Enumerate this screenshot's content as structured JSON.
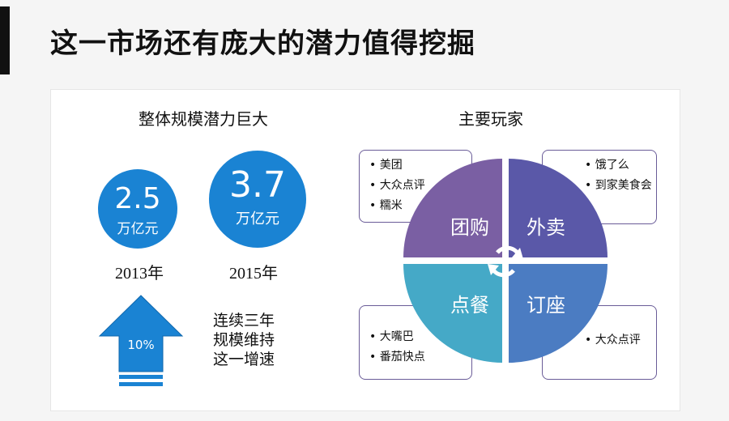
{
  "header": {
    "title": "这一市场还有庞大的潜力值得挖掘"
  },
  "left": {
    "section_title": "整体规模潜力巨大",
    "stats": [
      {
        "value": "2.5",
        "unit": "万亿元",
        "year": "2013年"
      },
      {
        "value": "3.7",
        "unit": "万亿元",
        "year": "2015年"
      }
    ],
    "growth": {
      "rate": "10%",
      "text": [
        "连续三年",
        "规模维持",
        "这一增速"
      ]
    }
  },
  "right": {
    "section_title": "主要玩家",
    "quadrants": [
      "团购",
      "外卖",
      "点餐",
      "订座"
    ],
    "players": {
      "tuangou": [
        "美团",
        "大众点评",
        "糯米"
      ],
      "waimai": [
        "饿了么",
        "到家美食会"
      ],
      "diancan": [
        "大嘴巴",
        "番茄快点"
      ],
      "dingzuo": [
        "大众点评"
      ]
    }
  },
  "colors": {
    "stat_blue": "#1a83d3",
    "tuangou": "#7a5fa3",
    "waimai": "#5a58a8",
    "diancan": "#45a9c7",
    "dingzuo": "#4b7cc2"
  }
}
